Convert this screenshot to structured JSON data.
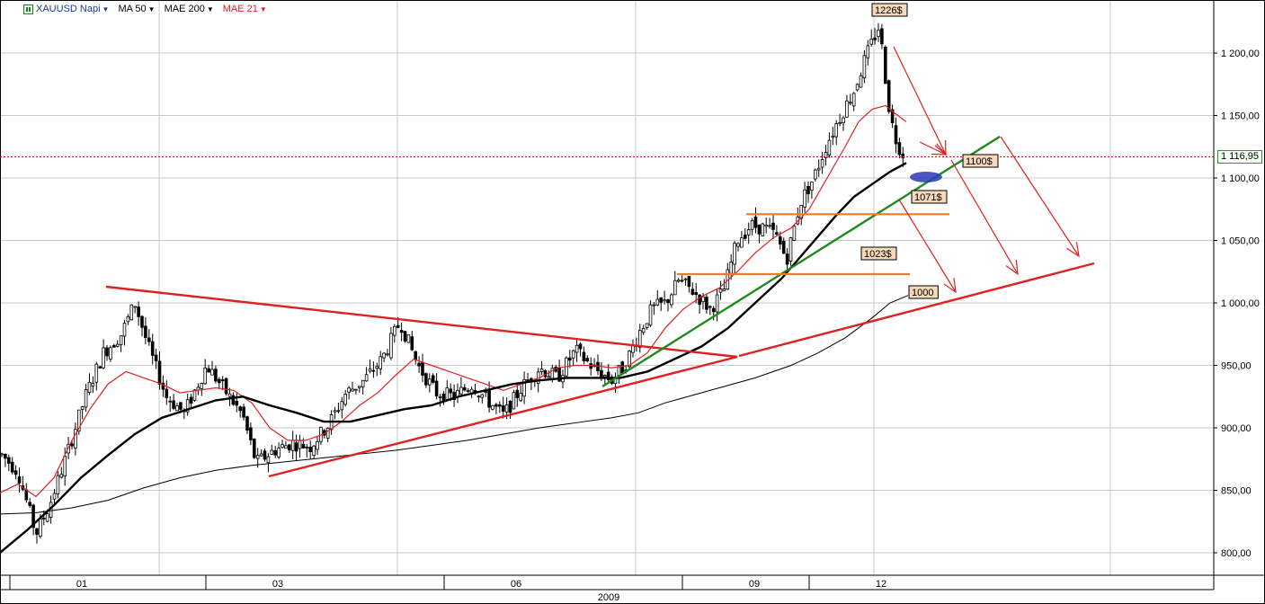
{
  "toolbar": {
    "symbol": "XAUUSD Napi",
    "ma50": "MA 50",
    "mae200": "MAE 200",
    "mae21": "MAE 21"
  },
  "current_price": "1 116,95",
  "colors": {
    "ma50": "#000000",
    "mae200": "#000000",
    "mae21": "#e02020",
    "trendline": "#e02020",
    "uptrend": "#1a8a1a",
    "support": "#f07a20",
    "candle": "#000000",
    "grid": "#c8c8c8"
  },
  "chart_data": {
    "type": "candlestick",
    "y_ticks": [
      "1 200,00",
      "1 150,00",
      "1 100,00",
      "1 050,00",
      "1 000,00",
      "950,00",
      "900,00",
      "850,00",
      "800,00"
    ],
    "ylim": [
      776,
      1240
    ],
    "x_ticks": [
      "01",
      "03",
      "06",
      "09",
      "12"
    ],
    "x_year_label": "2009",
    "annotations": {
      "peak": "1226$",
      "target_1100": "1100$",
      "target_1071": "1071$",
      "target_1023": "1023$",
      "target_1000": "1000"
    },
    "support_levels": [
      1071,
      1023
    ],
    "price_path": [
      [
        0,
        880
      ],
      [
        20,
        865
      ],
      [
        40,
        815
      ],
      [
        55,
        838
      ],
      [
        75,
        880
      ],
      [
        95,
        925
      ],
      [
        115,
        960
      ],
      [
        135,
        975
      ],
      [
        150,
        1000
      ],
      [
        165,
        965
      ],
      [
        185,
        925
      ],
      [
        205,
        912
      ],
      [
        230,
        950
      ],
      [
        250,
        930
      ],
      [
        270,
        910
      ],
      [
        285,
        872
      ],
      [
        305,
        882
      ],
      [
        325,
        888
      ],
      [
        345,
        885
      ],
      [
        365,
        902
      ],
      [
        385,
        928
      ],
      [
        405,
        938
      ],
      [
        425,
        955
      ],
      [
        445,
        985
      ],
      [
        465,
        950
      ],
      [
        485,
        928
      ],
      [
        505,
        925
      ],
      [
        525,
        935
      ],
      [
        545,
        920
      ],
      [
        560,
        910
      ],
      [
        580,
        932
      ],
      [
        600,
        948
      ],
      [
        620,
        940
      ],
      [
        640,
        962
      ],
      [
        660,
        948
      ],
      [
        680,
        938
      ],
      [
        695,
        950
      ],
      [
        710,
        975
      ],
      [
        725,
        995
      ],
      [
        740,
        1000
      ],
      [
        755,
        1018
      ],
      [
        770,
        1010
      ],
      [
        790,
        995
      ],
      [
        805,
        1010
      ],
      [
        820,
        1050
      ],
      [
        835,
        1062
      ],
      [
        850,
        1060
      ],
      [
        862,
        1055
      ],
      [
        875,
        1035
      ],
      [
        890,
        1080
      ],
      [
        905,
        1100
      ],
      [
        920,
        1128
      ],
      [
        935,
        1150
      ],
      [
        950,
        1170
      ],
      [
        962,
        1195
      ],
      [
        972,
        1212
      ],
      [
        978,
        1222
      ],
      [
        984,
        1185
      ],
      [
        990,
        1150
      ],
      [
        996,
        1132
      ],
      [
        1002,
        1122
      ],
      [
        1008,
        1116
      ]
    ]
  }
}
